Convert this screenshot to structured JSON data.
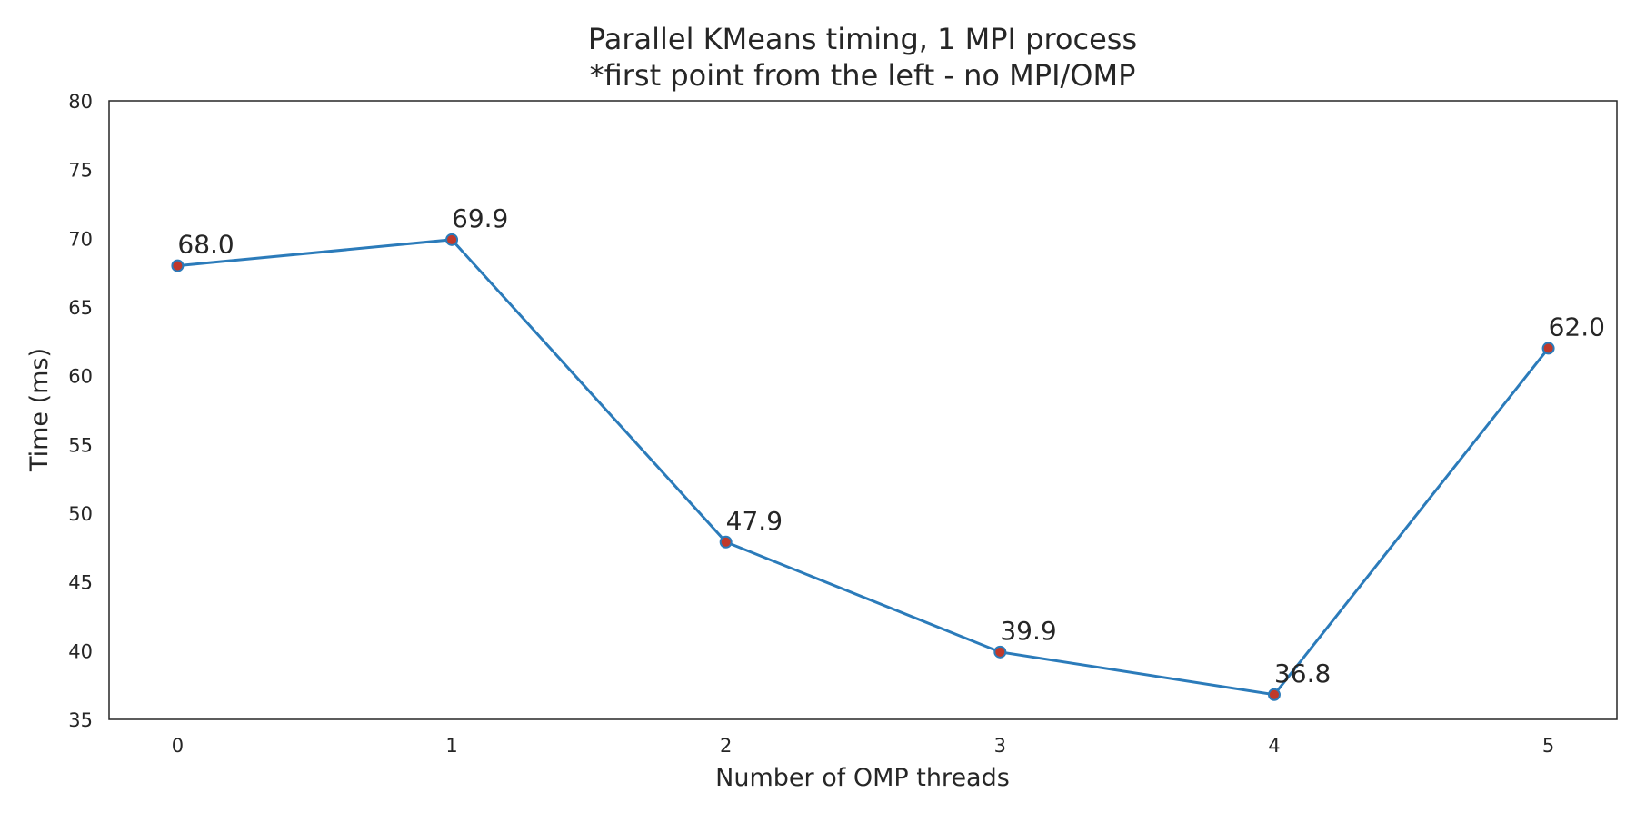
{
  "chart_data": {
    "type": "line",
    "title": "Parallel KMeans timing, 1 MPI process",
    "subtitle": "*first point from the left - no MPI/OMP",
    "xlabel": "Number of OMP threads",
    "ylabel": "Time (ms)",
    "x": [
      0,
      1,
      2,
      3,
      4,
      5
    ],
    "series": [
      {
        "values": [
          68.0,
          69.9,
          47.9,
          39.9,
          36.8,
          62.0
        ],
        "labels": [
          "68.0",
          "69.9",
          "47.9",
          "39.9",
          "36.8",
          "62.0"
        ]
      }
    ],
    "xlim": [
      -0.25,
      5.25
    ],
    "ylim": [
      35,
      80
    ],
    "xticks": [
      0,
      1,
      2,
      3,
      4,
      5
    ],
    "xtick_labels": [
      "0",
      "1",
      "2",
      "3",
      "4",
      "5"
    ],
    "yticks": [
      35,
      40,
      45,
      50,
      55,
      60,
      65,
      70,
      75,
      80
    ],
    "ytick_labels": [
      "35",
      "40",
      "45",
      "50",
      "55",
      "60",
      "65",
      "70",
      "75",
      "80"
    ],
    "grid": false,
    "legend": "none",
    "line_color": "#2b7bba",
    "marker_color": "#c0392b"
  }
}
